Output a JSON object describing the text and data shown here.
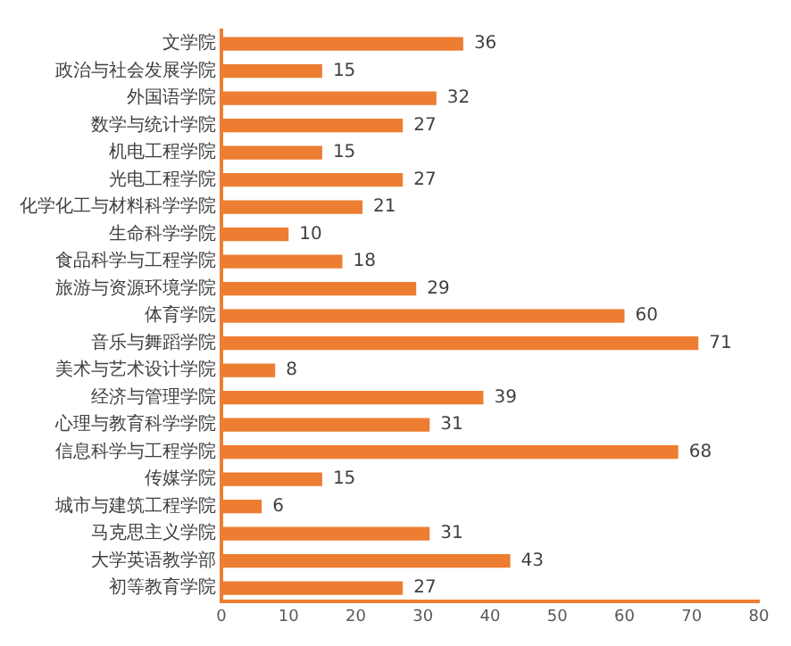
{
  "chart_data": {
    "type": "bar",
    "orientation": "horizontal",
    "categories": [
      "文学院",
      "政治与社会发展学院",
      "外国语学院",
      "数学与统计学院",
      "机电工程学院",
      "光电工程学院",
      "化学化工与材料科学学院",
      "生命科学学院",
      "食品科学与工程学院",
      "旅游与资源环境学院",
      "体育学院",
      "音乐与舞蹈学院",
      "美术与艺术设计学院",
      "经济与管理学院",
      "心理与教育科学学院",
      "信息科学与工程学院",
      "传媒学院",
      "城市与建筑工程学院",
      "马克思主义学院",
      "大学英语教学部",
      "初等教育学院"
    ],
    "values": [
      36,
      15,
      32,
      27,
      15,
      27,
      21,
      10,
      18,
      29,
      60,
      71,
      8,
      39,
      31,
      68,
      15,
      6,
      31,
      43,
      27
    ],
    "color": "#ed7d31",
    "xlim": [
      0,
      80
    ],
    "xticks": [
      0,
      10,
      20,
      30,
      40,
      50,
      60,
      70,
      80
    ],
    "grid": false,
    "data_labels": true
  }
}
